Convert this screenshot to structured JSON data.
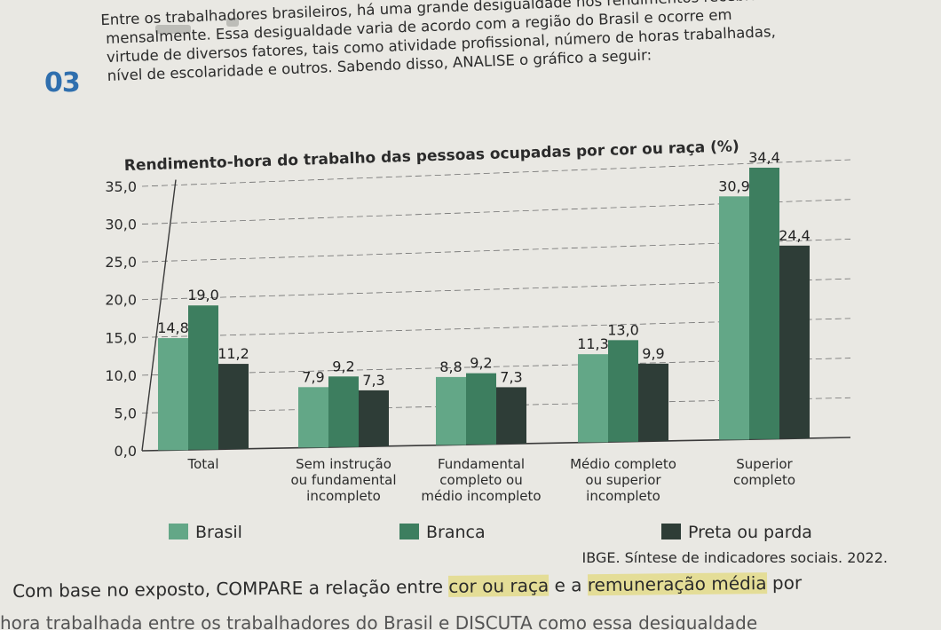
{
  "question": {
    "number": "03",
    "intro_lines": [
      "Entre os trabalhadores brasileiros, há uma grande desigualdade nos rendimentos recebidos",
      "mensalmente. Essa desigualdade varia de acordo com a região do Brasil e ocorre em",
      "virtude de diversos fatores, tais como atividade profissional, número de horas trabalhadas,",
      "nível de escolaridade e outros. Sabendo disso, ANALISE o gráfico a seguir:"
    ],
    "footer_pre": "Com base no exposto, COMPARE a relação entre ",
    "footer_hl1": "cor ou raça",
    "footer_mid": " e a ",
    "footer_hl2": "remuneração média",
    "footer_post": " por",
    "footer_cut": "hora trabalhada entre os trabalhadores do Brasil e DISCUTA como essa desigualdade"
  },
  "chart_data": {
    "type": "bar",
    "title": "Rendimento-hora do trabalho das pessoas ocupadas por cor ou raça (%)",
    "categories": [
      [
        "Total"
      ],
      [
        "Sem instrução",
        "ou fundamental",
        "incompleto"
      ],
      [
        "Fundamental",
        "completo ou",
        "médio incompleto"
      ],
      [
        "Médio completo",
        "ou superior",
        "incompleto"
      ],
      [
        "Superior",
        "completo"
      ]
    ],
    "series": [
      {
        "name": "Brasil",
        "color": "#63a787",
        "values": [
          14.8,
          7.9,
          8.8,
          11.3,
          30.9
        ]
      },
      {
        "name": "Branca",
        "color": "#3d7e5f",
        "values": [
          19.0,
          9.2,
          9.2,
          13.0,
          34.4
        ]
      },
      {
        "name": "Preta ou parda",
        "color": "#2e3d37",
        "values": [
          11.2,
          7.3,
          7.3,
          9.9,
          24.4
        ]
      }
    ],
    "value_labels": [
      [
        "14,8",
        "7,9",
        "8,8",
        "11,3",
        "30,9"
      ],
      [
        "19,0",
        "9,2",
        "9,2",
        "13,0",
        "34,4"
      ],
      [
        "11,2",
        "7,3",
        "7,3",
        "9,9",
        "24,4"
      ]
    ],
    "yticks": [
      "0,0",
      "5,0",
      "10,0",
      "15,0",
      "20,0",
      "25,0",
      "30,0",
      "35,0"
    ],
    "ylim": [
      0,
      35
    ],
    "source": "IBGE. Síntese de indicadores sociais. 2022.",
    "legend_placement": "bottom",
    "grid": true
  }
}
